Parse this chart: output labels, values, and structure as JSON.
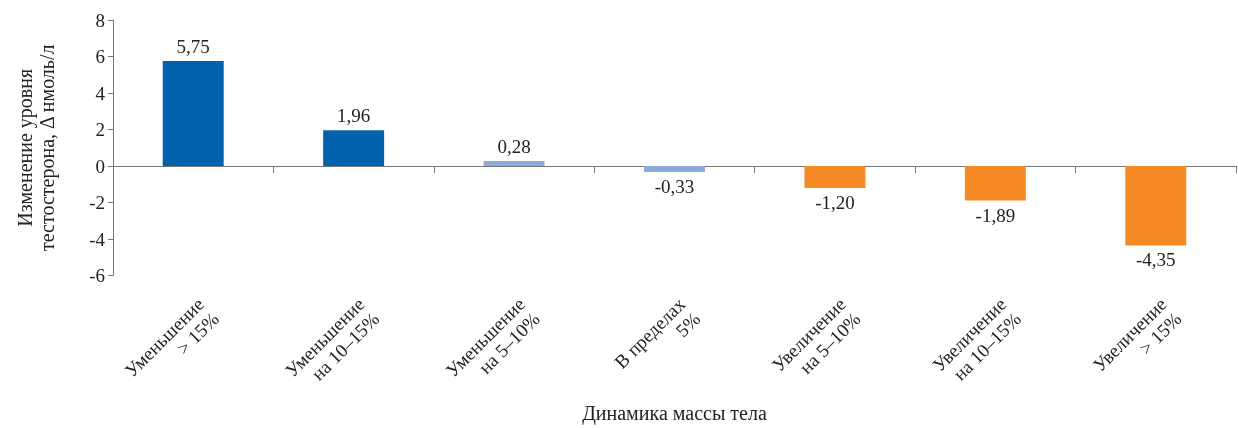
{
  "chart_data": {
    "type": "bar",
    "xlabel": "Динамика массы тела",
    "ylabel": "Изменение уровня\nтестостерона, Δ нмоль/л",
    "categories": [
      "Уменьшение\n> 15%",
      "Уменьшение\nна 10–15%",
      "Уменьшение\nна 5–10%",
      "В пределах\n5%",
      "Увеличение\nна 5–10%",
      "Увеличение\nна 10–15%",
      "Увеличение\n> 15%"
    ],
    "values": [
      5.75,
      1.96,
      0.28,
      -0.33,
      -1.2,
      -1.89,
      -4.35
    ],
    "value_labels": [
      "5,75",
      "1,96",
      "0,28",
      "-0,33",
      "-1,20",
      "-1,89",
      "-4,35"
    ],
    "colors": [
      "#0062ac",
      "#0062ac",
      "#8eaad8",
      "#8eaad8",
      "#f58a25",
      "#f58a25",
      "#f58a25"
    ],
    "ylim": [
      -6,
      8
    ],
    "yticks": [
      -6,
      -4,
      -2,
      0,
      2,
      4,
      6,
      8
    ]
  }
}
